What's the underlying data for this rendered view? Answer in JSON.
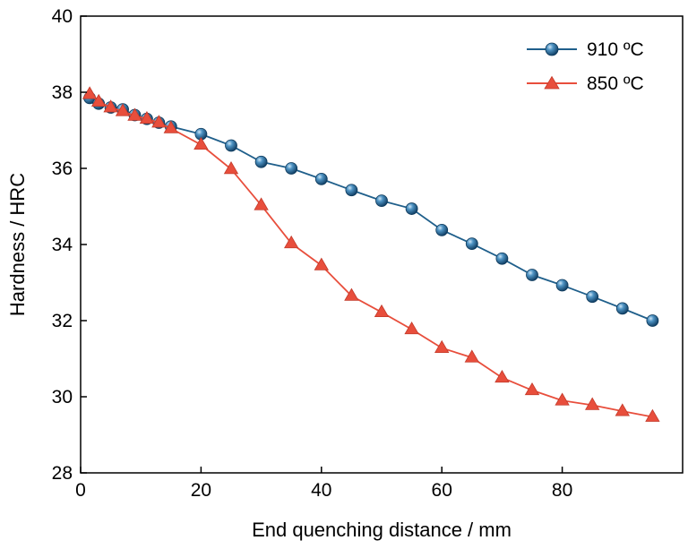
{
  "chart_data": {
    "type": "line",
    "title": "",
    "xlabel": "End quenching distance / mm",
    "ylabel": "Hardness / HRC",
    "xlim": [
      0,
      100
    ],
    "ylim": [
      28,
      40
    ],
    "xticks": [
      0,
      20,
      40,
      60,
      80
    ],
    "yticks": [
      28,
      30,
      32,
      34,
      36,
      38,
      40
    ],
    "grid": false,
    "legend_position": "top-right",
    "series": [
      {
        "name": "910 ºC",
        "color": "#1f5f8b",
        "marker": "circle",
        "x": [
          1.5,
          3,
          5,
          7,
          9,
          11,
          13,
          15,
          20,
          25,
          30,
          35,
          40,
          45,
          50,
          55,
          60,
          65,
          70,
          75,
          80,
          85,
          90,
          95
        ],
        "y": [
          37.85,
          37.7,
          37.6,
          37.55,
          37.4,
          37.3,
          37.2,
          37.1,
          36.9,
          36.6,
          36.17,
          36.0,
          35.72,
          35.43,
          35.15,
          34.94,
          34.38,
          34.02,
          33.63,
          33.2,
          32.93,
          32.63,
          32.32,
          32.0
        ]
      },
      {
        "name": "850 ºC",
        "color": "#e84e3c",
        "marker": "triangle",
        "x": [
          1.5,
          3,
          5,
          7,
          9,
          11,
          13,
          15,
          20,
          25,
          30,
          35,
          40,
          45,
          50,
          55,
          60,
          65,
          70,
          75,
          80,
          85,
          90,
          95
        ],
        "y": [
          37.95,
          37.75,
          37.6,
          37.5,
          37.38,
          37.3,
          37.2,
          37.05,
          36.62,
          35.98,
          35.03,
          34.03,
          33.45,
          32.65,
          32.22,
          31.77,
          31.28,
          31.03,
          30.5,
          30.17,
          29.9,
          29.78,
          29.62,
          29.47
        ]
      }
    ]
  }
}
